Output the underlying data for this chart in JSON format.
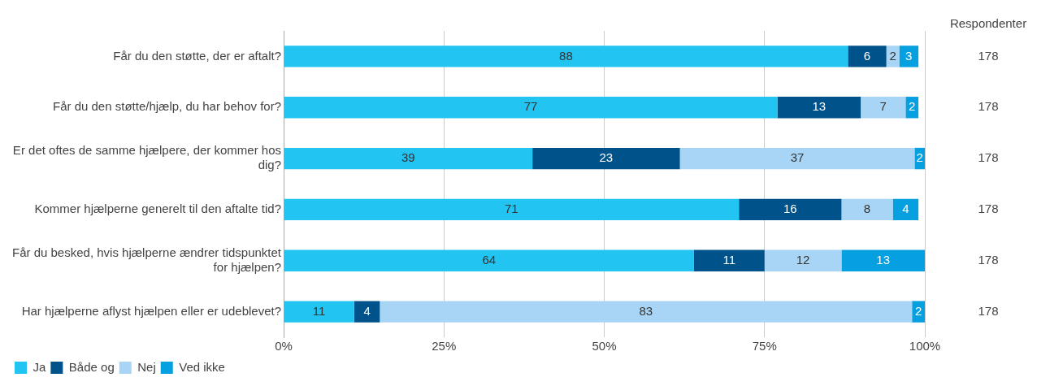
{
  "chart_data": {
    "type": "bar",
    "orientation": "horizontal",
    "stacked": true,
    "categories": [
      "Får du den støtte, der er aftalt?",
      "Får du den støtte/hjælp, du har behov for?",
      "Er det oftes de samme hjælpere, der kommer hos dig?",
      "Kommer hjælperne generelt til den aftalte tid?",
      "Får du besked, hvis hjælperne ændrer tidspunktet for hjælpen?",
      "Har hjælperne aflyst hjælpen eller er udeblevet?"
    ],
    "series": [
      {
        "name": "Ja",
        "color": "#22c4f2",
        "values": [
          88,
          77,
          38.8,
          71,
          64,
          11
        ],
        "value_labels": [
          "88",
          "77",
          "39",
          "71",
          "64",
          "11"
        ]
      },
      {
        "name": "Både og",
        "color": "#00538a",
        "values": [
          6,
          13,
          23,
          16,
          11,
          4
        ],
        "value_labels": [
          "6",
          "13",
          "23",
          "16",
          "11",
          "4"
        ]
      },
      {
        "name": "Nej",
        "color": "#a8d5f5",
        "values": [
          2,
          7,
          36.6,
          8,
          12,
          83
        ],
        "value_labels": [
          "2",
          "7",
          "37",
          "8",
          "12",
          "83"
        ]
      },
      {
        "name": "Ved ikke",
        "color": "#069fe0",
        "values": [
          3,
          2,
          1.6,
          4,
          13,
          2
        ],
        "value_labels": [
          "3",
          "2",
          "2",
          "4",
          "13",
          "2"
        ]
      }
    ],
    "xlim": [
      0,
      100
    ],
    "xticks": [
      {
        "value": 0,
        "label": "0%"
      },
      {
        "value": 25,
        "label": "25%"
      },
      {
        "value": 50,
        "label": "50%"
      },
      {
        "value": 75,
        "label": "75%"
      },
      {
        "value": 100,
        "label": "100%"
      }
    ],
    "grid": "x",
    "legend": "bottom left",
    "annotations": [
      "Respondenter",
      "178",
      "178",
      "178",
      "178",
      "178",
      "178"
    ]
  }
}
